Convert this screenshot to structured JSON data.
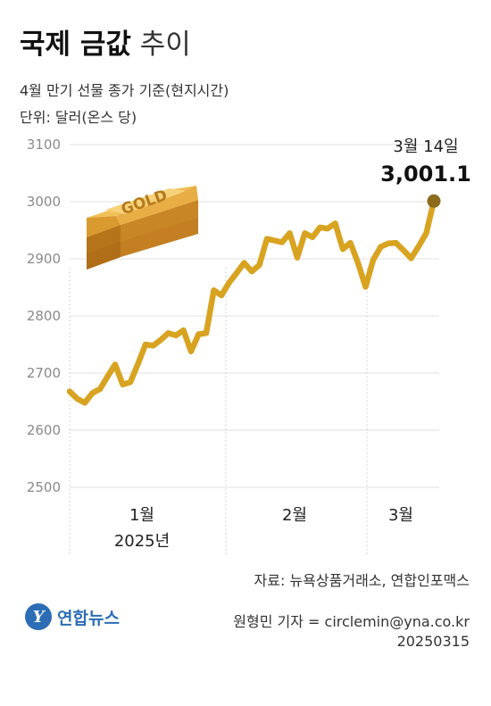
{
  "header": {
    "title_bold": "국제 금값",
    "title_light": "추이",
    "subtitle": "4월 만기 선물 종가 기준(현지시간)",
    "unit": "단위: 달러(온스 당)"
  },
  "footer": {
    "source": "자료: 뉴욕상품거래소, 연합인포맥스",
    "reporter": "원형민 기자 = circlemin@yna.co.kr",
    "date": "20250315",
    "logo_mark": "Y",
    "logo_text": "연합뉴스"
  },
  "illustration": {
    "bar_label": "GOLD"
  },
  "colors": {
    "line": "#d8a320",
    "marker": "#8c6b1c",
    "gold_bar": "#e3a641"
  },
  "chart_data": {
    "type": "line",
    "title": "국제 금값 추이",
    "subtitle": "4월 만기 선물 종가 기준(현지시간)",
    "unit": "단위: 달러(온스 당)",
    "ylim": [
      2500,
      3100
    ],
    "yticks": [
      2500,
      2600,
      2700,
      2800,
      2900,
      3000,
      3100
    ],
    "grid": true,
    "month_labels": [
      "1월",
      "2월",
      "3월"
    ],
    "year_label": "2025년",
    "series": [
      {
        "values": [
          2668,
          2655,
          2648,
          2665,
          2672,
          2694,
          2715,
          2680,
          2684,
          2716,
          2750,
          2748,
          2758,
          2770,
          2766,
          2775,
          2738,
          2768,
          2770,
          2845,
          2836,
          2858,
          2875,
          2893,
          2878,
          2889,
          2935,
          2932,
          2929,
          2945,
          2902,
          2945,
          2938,
          2955,
          2953,
          2962,
          2917,
          2928,
          2893,
          2851,
          2898,
          2921,
          2927,
          2928,
          2915,
          2901,
          2922,
          2945,
          3001.1
        ]
      }
    ],
    "annotation": {
      "date": "3월 14일",
      "value": "3,001.1"
    }
  }
}
